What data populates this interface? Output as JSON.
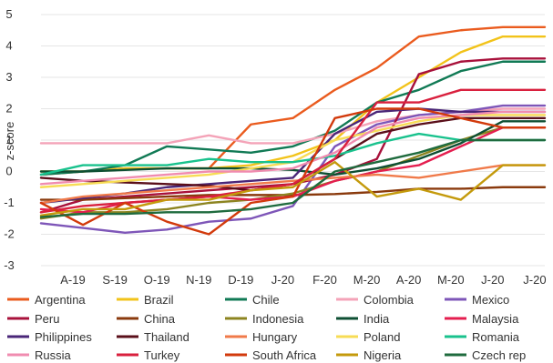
{
  "chart_data": {
    "type": "line",
    "title": "",
    "xlabel": "",
    "ylabel": "z-score",
    "ylim": [
      -3,
      5
    ],
    "yticks": [
      "-3",
      "-2",
      "-1",
      "0",
      "1",
      "2",
      "3",
      "4",
      "5"
    ],
    "categories": [
      "A-19",
      "S-19",
      "O-19",
      "N-19",
      "D-19",
      "J-20",
      "F-20",
      "M-20",
      "A-20",
      "M-20",
      "J-20",
      "J-20",
      "A-20"
    ],
    "grid": true,
    "legend_position": "bottom",
    "series": [
      {
        "name": "Argentina",
        "color": "#ea5b1e",
        "values": [
          -0.1,
          0.0,
          0.1,
          0.1,
          0.1,
          1.5,
          1.7,
          2.6,
          3.3,
          4.3,
          4.5,
          4.6,
          4.6
        ]
      },
      {
        "name": "Brazil",
        "color": "#f2c31a",
        "values": [
          0.0,
          0.0,
          0.1,
          0.1,
          0.1,
          0.2,
          0.5,
          1.0,
          2.2,
          3.0,
          3.8,
          4.3,
          4.3
        ]
      },
      {
        "name": "Chile",
        "color": "#117a55",
        "values": [
          -0.1,
          0.0,
          0.2,
          0.8,
          0.7,
          0.6,
          0.8,
          1.3,
          2.2,
          2.6,
          3.2,
          3.5,
          3.5
        ]
      },
      {
        "name": "Colombia",
        "color": "#f4a3b8",
        "values": [
          0.9,
          0.9,
          0.9,
          0.9,
          1.15,
          0.9,
          0.9,
          1.2,
          1.6,
          1.8,
          1.9,
          2.0,
          2.0
        ]
      },
      {
        "name": "Mexico",
        "color": "#7e56b8",
        "values": [
          -1.65,
          -1.8,
          -1.95,
          -1.85,
          -1.6,
          -1.5,
          -1.1,
          0.8,
          1.5,
          1.8,
          1.9,
          2.1,
          2.1
        ]
      },
      {
        "name": "Peru",
        "color": "#a8113b",
        "values": [
          -1.3,
          -0.9,
          -0.8,
          -0.7,
          -0.6,
          -0.5,
          -0.4,
          -0.1,
          0.4,
          3.1,
          3.5,
          3.6,
          3.6
        ]
      },
      {
        "name": "China",
        "color": "#8a3a0d",
        "values": [
          -0.9,
          -0.9,
          -0.85,
          -0.8,
          -0.75,
          -0.75,
          -0.75,
          -0.72,
          -0.65,
          -0.55,
          -0.55,
          -0.5,
          -0.5
        ]
      },
      {
        "name": "Indonesia",
        "color": "#8c8420",
        "values": [
          -1.5,
          -1.3,
          -1.3,
          -1.2,
          -1.0,
          -0.9,
          -0.7,
          -0.3,
          0.0,
          0.5,
          1.0,
          1.4,
          1.4
        ]
      },
      {
        "name": "India",
        "color": "#0e4f33",
        "values": [
          0.0,
          0.0,
          0.05,
          0.1,
          0.1,
          0.1,
          0.05,
          -0.1,
          0.1,
          0.4,
          0.9,
          1.6,
          1.6
        ]
      },
      {
        "name": "Malaysia",
        "color": "#e41e4f",
        "values": [
          -1.2,
          -1.3,
          -1.0,
          -0.9,
          -0.8,
          -0.9,
          -0.8,
          -0.3,
          0.0,
          0.2,
          0.8,
          1.4,
          1.4
        ]
      },
      {
        "name": "Philippines",
        "color": "#4a2678",
        "values": [
          -1.0,
          -0.85,
          -0.7,
          -0.5,
          -0.4,
          -0.3,
          -0.2,
          1.2,
          1.9,
          2.0,
          1.9,
          1.9,
          1.9
        ]
      },
      {
        "name": "Thailand",
        "color": "#5a0f1a",
        "values": [
          -0.2,
          -0.3,
          -0.35,
          -0.4,
          -0.45,
          -0.6,
          -0.4,
          0.4,
          1.2,
          1.5,
          1.7,
          1.7,
          1.7
        ]
      },
      {
        "name": "Hungary",
        "color": "#f07a4a",
        "values": [
          -1.0,
          -0.8,
          -0.7,
          -0.6,
          -0.5,
          -0.4,
          -0.3,
          -0.2,
          -0.1,
          -0.2,
          0.0,
          0.2,
          0.2
        ]
      },
      {
        "name": "Poland",
        "color": "#f7dc55",
        "values": [
          -0.5,
          -0.4,
          -0.3,
          -0.2,
          -0.1,
          0.1,
          0.3,
          1.0,
          1.3,
          1.6,
          1.8,
          1.8,
          1.8
        ]
      },
      {
        "name": "Romania",
        "color": "#19c28d",
        "values": [
          -0.1,
          0.2,
          0.2,
          0.2,
          0.4,
          0.3,
          0.3,
          0.5,
          0.9,
          1.2,
          1.0,
          1.0,
          1.0
        ]
      },
      {
        "name": "Russia",
        "color": "#f08cb0",
        "values": [
          -0.4,
          -0.3,
          -0.2,
          -0.1,
          0.0,
          0.0,
          0.1,
          0.6,
          1.4,
          1.7,
          1.8,
          1.9,
          1.9
        ]
      },
      {
        "name": "Turkey",
        "color": "#d9203e",
        "values": [
          -1.3,
          -1.1,
          -1.0,
          -0.9,
          -0.8,
          -0.6,
          -0.4,
          0.4,
          2.2,
          2.2,
          2.6,
          2.6,
          2.6
        ]
      },
      {
        "name": "South Africa",
        "color": "#d23a0c",
        "values": [
          -1.0,
          -1.7,
          -1.0,
          -1.6,
          -2.0,
          -1.0,
          -0.8,
          1.7,
          2.0,
          2.0,
          1.7,
          1.4,
          1.4
        ]
      },
      {
        "name": "Nigeria",
        "color": "#c49a0c",
        "values": [
          -1.4,
          -1.2,
          -1.2,
          -0.9,
          -0.9,
          -0.6,
          -0.5,
          0.3,
          -0.8,
          -0.55,
          -0.9,
          0.2,
          0.2
        ]
      },
      {
        "name": "Czech rep",
        "color": "#1f6b3e",
        "values": [
          -1.45,
          -1.35,
          -1.35,
          -1.3,
          -1.3,
          -1.2,
          -1.0,
          0.0,
          0.3,
          0.6,
          1.0,
          1.0,
          1.0
        ]
      }
    ]
  }
}
